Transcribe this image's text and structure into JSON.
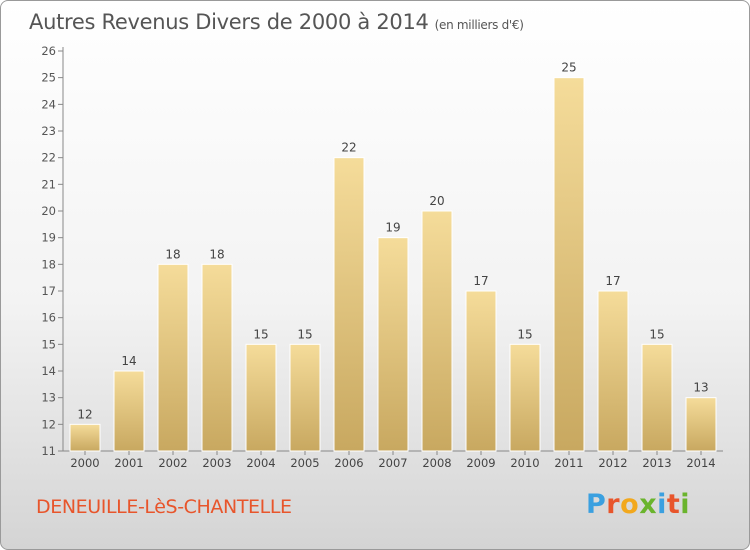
{
  "chart_data": {
    "type": "bar",
    "title": "Autres Revenus Divers de 2000 à 2014",
    "unit_label": "(en milliers d'€)",
    "categories": [
      "2000",
      "2001",
      "2002",
      "2003",
      "2004",
      "2005",
      "2006",
      "2007",
      "2008",
      "2009",
      "2010",
      "2011",
      "2012",
      "2013",
      "2014"
    ],
    "values": [
      12,
      14,
      18,
      18,
      15,
      15,
      22,
      19,
      20,
      17,
      15,
      25,
      17,
      15,
      13
    ],
    "ylim": [
      11,
      26
    ],
    "yticks": [
      11,
      12,
      13,
      14,
      15,
      16,
      17,
      18,
      19,
      20,
      21,
      22,
      23,
      24,
      25,
      26
    ],
    "grid": false,
    "bar_color_light": "#f5dc9a",
    "bar_color_dark": "#c8a860"
  },
  "footer": {
    "commune": "DENEUILLE-LèS-CHANTELLE",
    "logo_letters": [
      "P",
      "r",
      "o",
      "x",
      "i",
      "t",
      "i"
    ],
    "logo_colors": [
      "#3aa0e0",
      "#e8552b",
      "#f2a81d",
      "#6ab42d",
      "#3aa0e0",
      "#e8552b",
      "#6ab42d"
    ]
  }
}
